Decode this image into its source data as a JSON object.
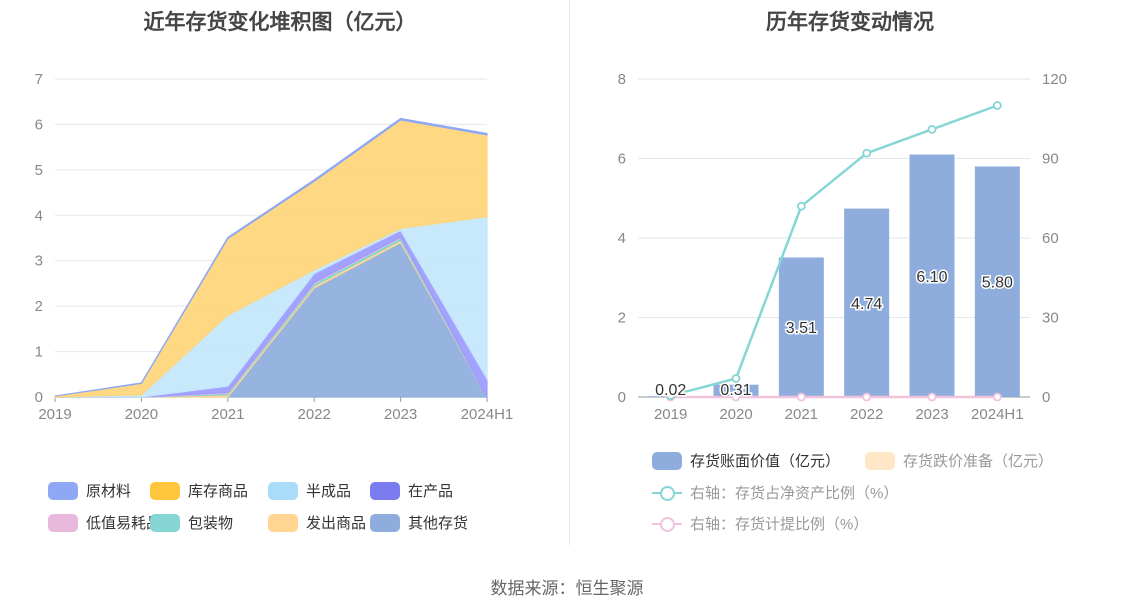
{
  "chart_data": [
    {
      "type": "area",
      "stacked": true,
      "title": "近年存货变化堆积图（亿元）",
      "categories": [
        "2019",
        "2020",
        "2021",
        "2022",
        "2023",
        "2024H1"
      ],
      "ylim": [
        0,
        7
      ],
      "yticks": [
        "0",
        "1",
        "2",
        "3",
        "4",
        "5",
        "6",
        "7"
      ],
      "grid": true,
      "legend_position": "bottom",
      "series": [
        {
          "name": "其他存货",
          "color": "#8eaddc",
          "values": [
            0.0,
            0.0,
            0.0,
            2.4,
            3.4,
            0.0
          ]
        },
        {
          "name": "发出商品",
          "color": "#ffd591",
          "values": [
            0.0,
            0.0,
            0.05,
            0.05,
            0.05,
            0.0
          ]
        },
        {
          "name": "包装物",
          "color": "#7fd4d4",
          "values": [
            0.0,
            0.0,
            0.03,
            0.05,
            0.05,
            0.0
          ]
        },
        {
          "name": "低值易耗品",
          "color": "#e8b9dc",
          "values": [
            0.0,
            0.0,
            0.02,
            0.02,
            0.02,
            0.0
          ]
        },
        {
          "name": "在产品",
          "color": "#9b9bff",
          "values": [
            0.0,
            0.0,
            0.14,
            0.2,
            0.15,
            0.4
          ]
        },
        {
          "name": "半成品",
          "color": "#c3e6fb",
          "values": [
            0.0,
            0.05,
            1.56,
            0.08,
            0.04,
            3.57
          ]
        },
        {
          "name": "库存商品",
          "color": "#ffd57a",
          "values": [
            0.02,
            0.25,
            1.69,
            1.95,
            2.39,
            1.8
          ]
        },
        {
          "name": "原材料",
          "color": "#8ea8f5",
          "values": [
            0.0,
            0.01,
            0.02,
            0.03,
            0.03,
            0.03
          ]
        }
      ],
      "legend": [
        {
          "name": "原材料",
          "color": "#8ea8f5"
        },
        {
          "name": "库存商品",
          "color": "#ffc53d"
        },
        {
          "name": "半成品",
          "color": "#a8dcf8"
        },
        {
          "name": "在产品",
          "color": "#7b7bf0"
        },
        {
          "name": "低值易耗品",
          "color": "#e8b9dc"
        },
        {
          "name": "包装物",
          "color": "#86d6d6"
        },
        {
          "name": "发出商品",
          "color": "#ffd591"
        },
        {
          "name": "其他存货",
          "color": "#8eaddc"
        }
      ]
    },
    {
      "type": "bar",
      "title": "历年存货变动情况",
      "categories": [
        "2019",
        "2020",
        "2021",
        "2022",
        "2023",
        "2024H1"
      ],
      "ylim": [
        0,
        8
      ],
      "yticks": [
        "0",
        "2",
        "4",
        "6",
        "8"
      ],
      "y2lim": [
        0,
        120
      ],
      "y2ticks": [
        "0",
        "30",
        "60",
        "90",
        "120"
      ],
      "grid": true,
      "legend_position": "bottom",
      "series": [
        {
          "name": "存货账面价值（亿元）",
          "kind": "bar",
          "color": "#8eaddc",
          "values": [
            0.02,
            0.31,
            3.51,
            4.74,
            6.1,
            5.8
          ],
          "labels": [
            "0.02",
            "0.31",
            "3.51",
            "4.74",
            "6.10",
            "5.80"
          ]
        },
        {
          "name": "存货跌价准备（亿元）",
          "kind": "bar",
          "color": "#ffe6c7",
          "values": [
            0,
            0,
            0,
            0,
            0,
            0
          ]
        },
        {
          "name": "右轴：存货占净资产比例（%）",
          "kind": "line",
          "axis": "right",
          "color": "#86d6d6",
          "values": [
            0.5,
            7,
            72,
            92,
            101,
            110
          ]
        },
        {
          "name": "右轴：存货计提比例（%）",
          "kind": "line",
          "axis": "right",
          "color": "#f0c2dc",
          "values": [
            0,
            0,
            0,
            0,
            0,
            0
          ]
        }
      ]
    }
  ],
  "footer": "数据来源：恒生聚源"
}
